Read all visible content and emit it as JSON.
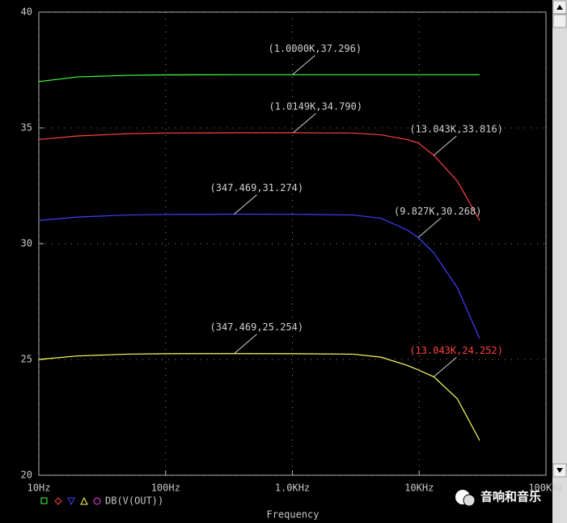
{
  "chart_data": {
    "type": "line",
    "xscale": "log",
    "x": [
      10,
      20,
      50,
      100,
      347.469,
      1000,
      3000,
      5000,
      8000,
      9827,
      13043,
      20000,
      30000
    ],
    "xlim": [
      10,
      100000
    ],
    "xticks": [
      {
        "value": 10,
        "label": "10Hz"
      },
      {
        "value": 100,
        "label": "100Hz"
      },
      {
        "value": 1000,
        "label": "1.0KHz"
      },
      {
        "value": 10000,
        "label": "10KHz"
      },
      {
        "value": 100000,
        "label": "100KHz"
      }
    ],
    "ylim": [
      20,
      40
    ],
    "yticks": [
      20,
      25,
      30,
      35,
      40
    ],
    "grid": true,
    "xlabel": "Frequency",
    "legend": "DB(V(OUT))",
    "series": [
      {
        "color": "#40ff40",
        "values": [
          37.0,
          37.2,
          37.27,
          37.29,
          37.296,
          37.296,
          37.296,
          37.296,
          37.296,
          37.296,
          37.296,
          37.296,
          37.296
        ]
      },
      {
        "color": "#ff4040",
        "values": [
          34.5,
          34.65,
          34.75,
          34.78,
          34.79,
          34.79,
          34.78,
          34.7,
          34.5,
          34.35,
          33.816,
          32.7,
          31.0
        ]
      },
      {
        "color": "#4040ff",
        "values": [
          31.0,
          31.15,
          31.24,
          31.26,
          31.274,
          31.27,
          31.24,
          31.1,
          30.6,
          30.268,
          29.6,
          28.1,
          25.9
        ]
      },
      {
        "color": "#ffff60",
        "values": [
          25.0,
          25.15,
          25.23,
          25.25,
          25.254,
          25.25,
          25.23,
          25.1,
          24.75,
          24.55,
          24.252,
          23.3,
          21.5
        ]
      }
    ],
    "annotations": [
      {
        "label": "(1.0000K,37.296)",
        "x": 1000,
        "y": 37.296,
        "color": "#d0d0d0"
      },
      {
        "label": "(1.0149K,34.790)",
        "x": 1014.9,
        "y": 34.79,
        "color": "#d0d0d0"
      },
      {
        "label": "(13.043K,33.816)",
        "x": 13043,
        "y": 33.816,
        "color": "#d0d0d0"
      },
      {
        "label": "(347.469,31.274)",
        "x": 347.469,
        "y": 31.274,
        "color": "#d0d0d0"
      },
      {
        "label": "(9.827K,30.268)",
        "x": 9827,
        "y": 30.268,
        "color": "#d0d0d0"
      },
      {
        "label": "(347.469,25.254)",
        "x": 347.469,
        "y": 25.254,
        "color": "#d0d0d0"
      },
      {
        "label": "(13.043K,24.252)",
        "x": 13043,
        "y": 24.252,
        "color": "#ff4040"
      }
    ]
  },
  "watermark": "音响和音乐"
}
